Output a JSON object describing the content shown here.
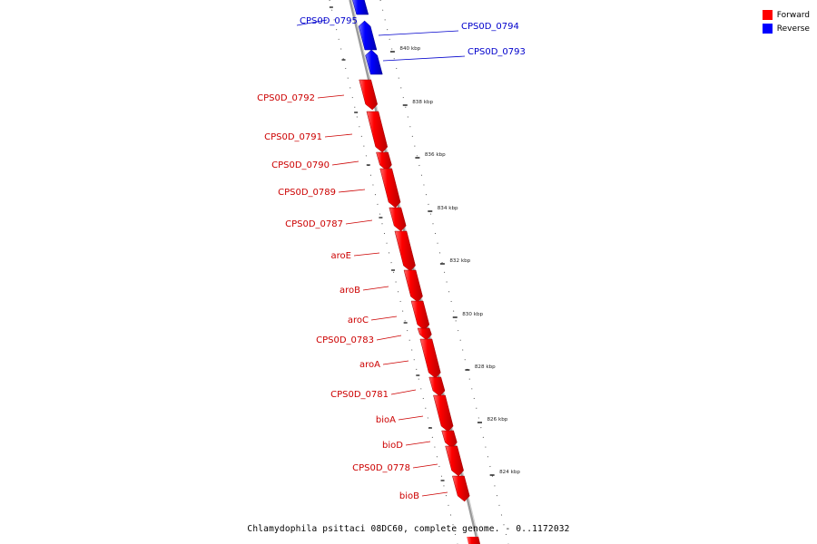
{
  "legend": [
    {
      "label": "Forward",
      "color": "#ff0000"
    },
    {
      "label": "Reverse",
      "color": "#0000ff"
    }
  ],
  "footer": {
    "title": "Chlamydophila psittaci 08DC60, complete genome. - 0..1172032"
  },
  "colors": {
    "forward": "#ff0000",
    "reverse": "#0000ff",
    "backbone": "#888888",
    "forward_label": "#cc0000",
    "reverse_label": "#0000cc"
  },
  "ticks": [
    "840 kbp",
    "838 kbp",
    "836 kbp",
    "834 kbp",
    "832 kbp",
    "830 kbp",
    "828 kbp",
    "826 kbp",
    "824 kbp"
  ],
  "genes": [
    {
      "name": "CPS0D_0795",
      "strand": "reverse"
    },
    {
      "name": "CPS0D_0794",
      "strand": "reverse"
    },
    {
      "name": "CPS0D_0793",
      "strand": "reverse"
    },
    {
      "name": "CPS0D_0792",
      "strand": "forward"
    },
    {
      "name": "CPS0D_0791",
      "strand": "forward"
    },
    {
      "name": "CPS0D_0790",
      "strand": "forward"
    },
    {
      "name": "CPS0D_0789",
      "strand": "forward"
    },
    {
      "name": "CPS0D_0787",
      "strand": "forward"
    },
    {
      "name": "aroE",
      "strand": "forward"
    },
    {
      "name": "aroB",
      "strand": "forward"
    },
    {
      "name": "aroC",
      "strand": "forward"
    },
    {
      "name": "CPS0D_0783",
      "strand": "forward"
    },
    {
      "name": "aroA",
      "strand": "forward"
    },
    {
      "name": "CPS0D_0781",
      "strand": "forward"
    },
    {
      "name": "bioA",
      "strand": "forward"
    },
    {
      "name": "bioD",
      "strand": "forward"
    },
    {
      "name": "CPS0D_0778",
      "strand": "forward"
    },
    {
      "name": "bioB",
      "strand": "forward"
    }
  ]
}
